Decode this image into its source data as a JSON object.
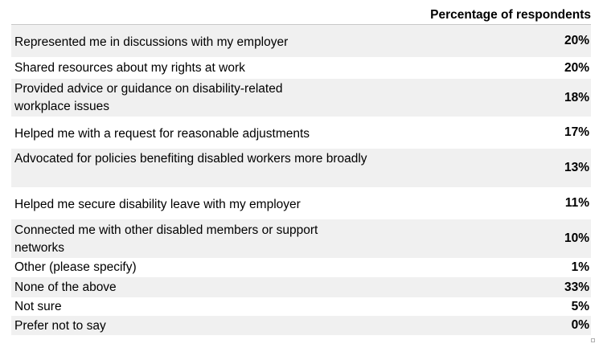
{
  "header": {
    "column_label": "Percentage of respondents"
  },
  "chart_data": {
    "type": "table",
    "columns": [
      "",
      "Percentage of respondents"
    ],
    "rows": [
      {
        "label": "Represented me in discussions with my employer",
        "value": "20%"
      },
      {
        "label": "Shared resources about my rights at work",
        "value": "20%"
      },
      {
        "label": "Provided advice or guidance on disability-related workplace issues",
        "value": "18%"
      },
      {
        "label": "Helped me with a request for reasonable adjustments",
        "value": "17%"
      },
      {
        "label": "Advocated for policies benefiting disabled workers more broadly",
        "value": "13%"
      },
      {
        "label": "Helped me secure disability leave with my employer",
        "value": "11%"
      },
      {
        "label": "Connected me with other disabled members or support networks",
        "value": "10%"
      },
      {
        "label": "Other (please specify)",
        "value": "1%"
      },
      {
        "label": "None of the above",
        "value": "33%"
      },
      {
        "label": "Not sure",
        "value": "5%"
      },
      {
        "label": "Prefer not to say",
        "value": "0%"
      }
    ]
  }
}
